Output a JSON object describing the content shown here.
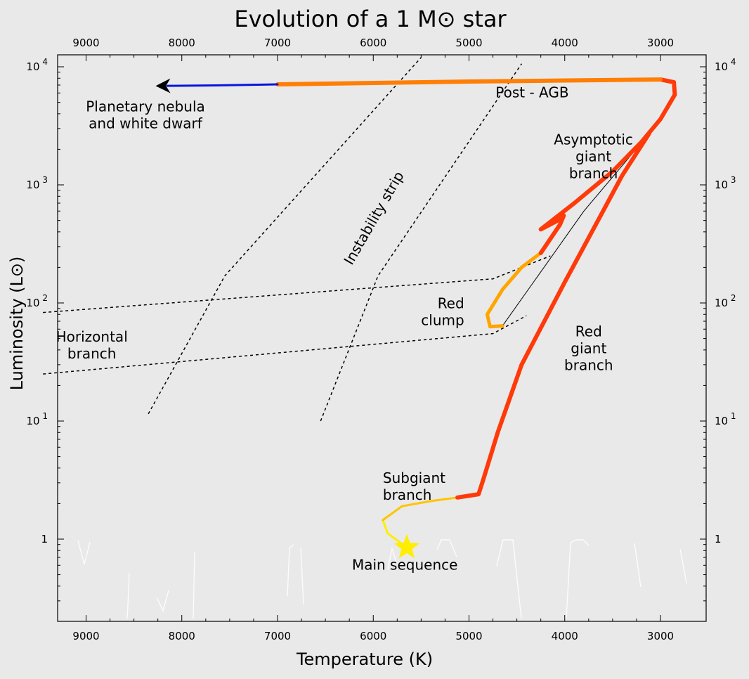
{
  "chart_data": {
    "type": "line",
    "title": "Evolution of a 1 M⊙ star",
    "xlabel": "Temperature (K)",
    "ylabel": "Luminosity (L⊙)",
    "x_scale": "reversed",
    "y_scale": "log",
    "xlim": [
      9500,
      2600
    ],
    "ylim": [
      0.2,
      15000
    ],
    "x_ticks": [
      9000,
      8000,
      7000,
      6000,
      5000,
      4000,
      3000
    ],
    "x_tick_labels": [
      "9000",
      "8000",
      "7000",
      "6000",
      "5000",
      "4000",
      "3000"
    ],
    "y_ticks": [
      {
        "value": 1,
        "base": "1",
        "exp": ""
      },
      {
        "value": 10,
        "base": "10",
        "exp": "1"
      },
      {
        "value": 100,
        "base": "10",
        "exp": "2"
      },
      {
        "value": 1000,
        "base": "10",
        "exp": "3"
      },
      {
        "value": 10000,
        "base": "10",
        "exp": "4"
      }
    ],
    "grid": false,
    "series": [
      {
        "color": "#ffee00",
        "width": 3,
        "points": [
          [
            5650,
            0.85
          ],
          [
            5850,
            1.12
          ],
          [
            5900,
            1.45
          ]
        ]
      },
      {
        "color": "#ffc400",
        "width": 3,
        "points": [
          [
            5900,
            1.45
          ],
          [
            5700,
            1.9
          ],
          [
            5400,
            2.1
          ],
          [
            5120,
            2.25
          ]
        ]
      },
      {
        "color": "#ff3a0a",
        "width": 6,
        "points": [
          [
            5120,
            2.25
          ],
          [
            4900,
            2.4
          ],
          [
            4850,
            3.2
          ],
          [
            4700,
            8
          ],
          [
            4450,
            30
          ],
          [
            4000,
            150
          ],
          [
            3600,
            600
          ],
          [
            3400,
            1200
          ],
          [
            3120,
            2700
          ]
        ]
      },
      {
        "color": "#000000",
        "width": 1,
        "points": [
          [
            3120,
            2700
          ],
          [
            3800,
            600
          ],
          [
            4650,
            64
          ]
        ]
      },
      {
        "color": "#ffa500",
        "width": 5,
        "points": [
          [
            4650,
            64
          ],
          [
            4780,
            63
          ],
          [
            4810,
            80
          ],
          [
            4650,
            130
          ],
          [
            4450,
            200
          ],
          [
            4250,
            265
          ]
        ]
      },
      {
        "color": "#ff3a0a",
        "width": 6,
        "points": [
          [
            4250,
            265
          ],
          [
            4050,
            460
          ],
          [
            4010,
            550
          ],
          [
            4050,
            510
          ],
          [
            4250,
            420
          ],
          [
            3900,
            700
          ],
          [
            3500,
            1300
          ],
          [
            3200,
            2300
          ],
          [
            3000,
            3600
          ],
          [
            2850,
            5800
          ],
          [
            2860,
            7400
          ],
          [
            3000,
            7800
          ]
        ]
      },
      {
        "color": "#ff7e05",
        "width": 6,
        "points": [
          [
            3000,
            7800
          ],
          [
            4000,
            7650
          ],
          [
            5000,
            7500
          ],
          [
            6000,
            7300
          ],
          [
            7000,
            7100
          ]
        ]
      },
      {
        "color": "#0a14dc",
        "width": 3,
        "points": [
          [
            7000,
            7100
          ],
          [
            7650,
            6950
          ],
          [
            8150,
            6900
          ]
        ],
        "arrow": true
      }
    ],
    "reference_lines": [
      {
        "label": "Instability strip edge 1",
        "points": [
          [
            8350,
            11.5
          ],
          [
            7550,
            170
          ],
          [
            5500,
            12000
          ]
        ]
      },
      {
        "label": "Instability strip edge 2",
        "points": [
          [
            6550,
            10
          ],
          [
            5950,
            170
          ],
          [
            4450,
            10600
          ]
        ]
      },
      {
        "label": "Horizontal branch upper",
        "points": [
          [
            9450,
            83
          ],
          [
            4750,
            160
          ],
          [
            4150,
            250
          ]
        ]
      },
      {
        "label": "Horizontal branch lower",
        "points": [
          [
            9450,
            25
          ],
          [
            4750,
            55
          ],
          [
            4400,
            78
          ]
        ]
      }
    ],
    "markers": [
      {
        "label": "Main sequence star",
        "shape": "star",
        "color": "#ffee00",
        "x": 5650,
        "y": 0.85
      }
    ],
    "annotations": [
      {
        "lines": [
          "Planetary nebula",
          "and white dwarf"
        ],
        "x": 8380,
        "y": 4200,
        "anchor": "middle"
      },
      {
        "lines": [
          "Post - AGB"
        ],
        "x": 4340,
        "y": 5500,
        "anchor": "middle"
      },
      {
        "lines": [
          "Asymptotic",
          "giant",
          "branch"
        ],
        "x": 3700,
        "y": 2200,
        "anchor": "middle"
      },
      {
        "lines": [
          "Instability strip"
        ],
        "x": 5950,
        "y": 500,
        "anchor": "middle",
        "rotate": -60
      },
      {
        "lines": [
          "Red",
          "clump"
        ],
        "x": 5050,
        "y": 90,
        "anchor": "end"
      },
      {
        "lines": [
          "Horizontal",
          "branch"
        ],
        "x": 8940,
        "y": 47,
        "anchor": "middle"
      },
      {
        "lines": [
          "Red",
          "giant",
          "branch"
        ],
        "x": 3750,
        "y": 52,
        "anchor": "middle"
      },
      {
        "lines": [
          "Subgiant",
          "branch"
        ],
        "x": 5900,
        "y": 3.0,
        "anchor": "start"
      },
      {
        "lines": [
          "Main sequence"
        ],
        "x": 5670,
        "y": 0.55,
        "anchor": "middle"
      }
    ]
  }
}
